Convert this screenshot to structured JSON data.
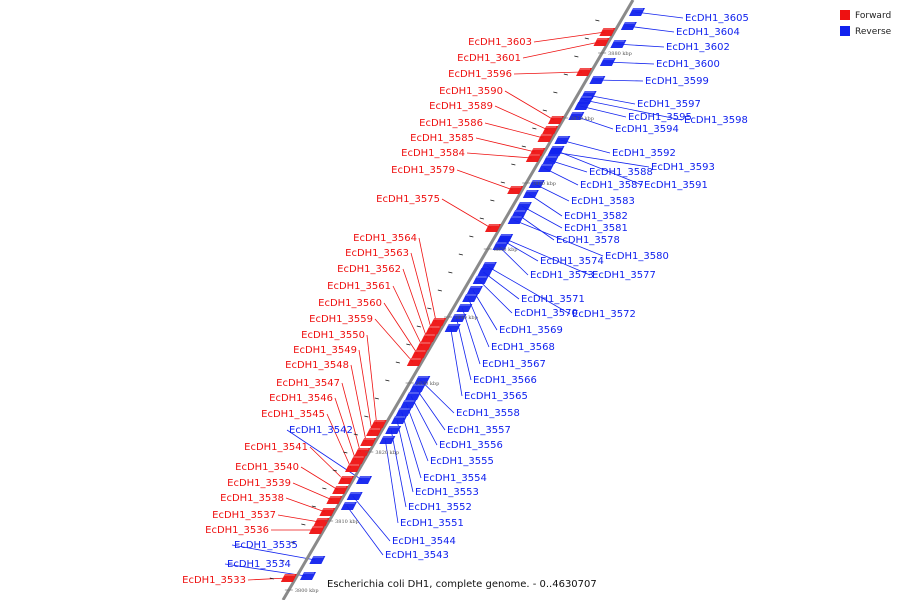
{
  "legend": {
    "forward": {
      "label": "Forward",
      "color": "#ee1111"
    },
    "reverse": {
      "label": "Reverse",
      "color": "#1122ee"
    }
  },
  "caption": "Escherichia coli DH1, complete genome. - 0..4630707",
  "ticks": [
    "3800 kbp",
    "3810 kbp",
    "3820 kbp",
    "3830 kbp",
    "3840 kbp",
    "3850 kbp",
    "3860 kbp",
    "3870 kbp",
    "3880 kbp"
  ],
  "forward_genes": [
    "EcDH1_3603",
    "EcDH1_3601",
    "EcDH1_3596",
    "EcDH1_3590",
    "EcDH1_3589",
    "EcDH1_3586",
    "EcDH1_3585",
    "EcDH1_3584",
    "EcDH1_3579",
    "EcDH1_3575",
    "EcDH1_3564",
    "EcDH1_3563",
    "EcDH1_3562",
    "EcDH1_3561",
    "EcDH1_3560",
    "EcDH1_3559",
    "EcDH1_3550",
    "EcDH1_3549",
    "EcDH1_3548",
    "EcDH1_3547",
    "EcDH1_3546",
    "EcDH1_3545",
    "EcDH1_3541",
    "EcDH1_3540",
    "EcDH1_3539",
    "EcDH1_3538",
    "EcDH1_3537",
    "EcDH1_3536",
    "EcDH1_3533"
  ],
  "reverse_genes": [
    "EcDH1_3605",
    "EcDH1_3604",
    "EcDH1_3602",
    "EcDH1_3600",
    "EcDH1_3599",
    "EcDH1_3597",
    "EcDH1_3595",
    "EcDH1_3598",
    "EcDH1_3594",
    "EcDH1_3592",
    "EcDH1_3593",
    "EcDH1_3588",
    "EcDH1_3587",
    "EcDH1_3591",
    "EcDH1_3583",
    "EcDH1_3582",
    "EcDH1_3581",
    "EcDH1_3578",
    "EcDH1_3580",
    "EcDH1_3574",
    "EcDH1_3573",
    "EcDH1_3577",
    "EcDH1_3571",
    "EcDH1_3570",
    "EcDH1_3572",
    "EcDH1_3569",
    "EcDH1_3568",
    "EcDH1_3567",
    "EcDH1_3566",
    "EcDH1_3565",
    "EcDH1_3558",
    "EcDH1_3557",
    "EcDH1_3556",
    "EcDH1_3555",
    "EcDH1_3554",
    "EcDH1_3553",
    "EcDH1_3552",
    "EcDH1_3551",
    "EcDH1_3544",
    "EcDH1_3543",
    "EcDH1_3542",
    "EcDH1_3535",
    "EcDH1_3534"
  ]
}
